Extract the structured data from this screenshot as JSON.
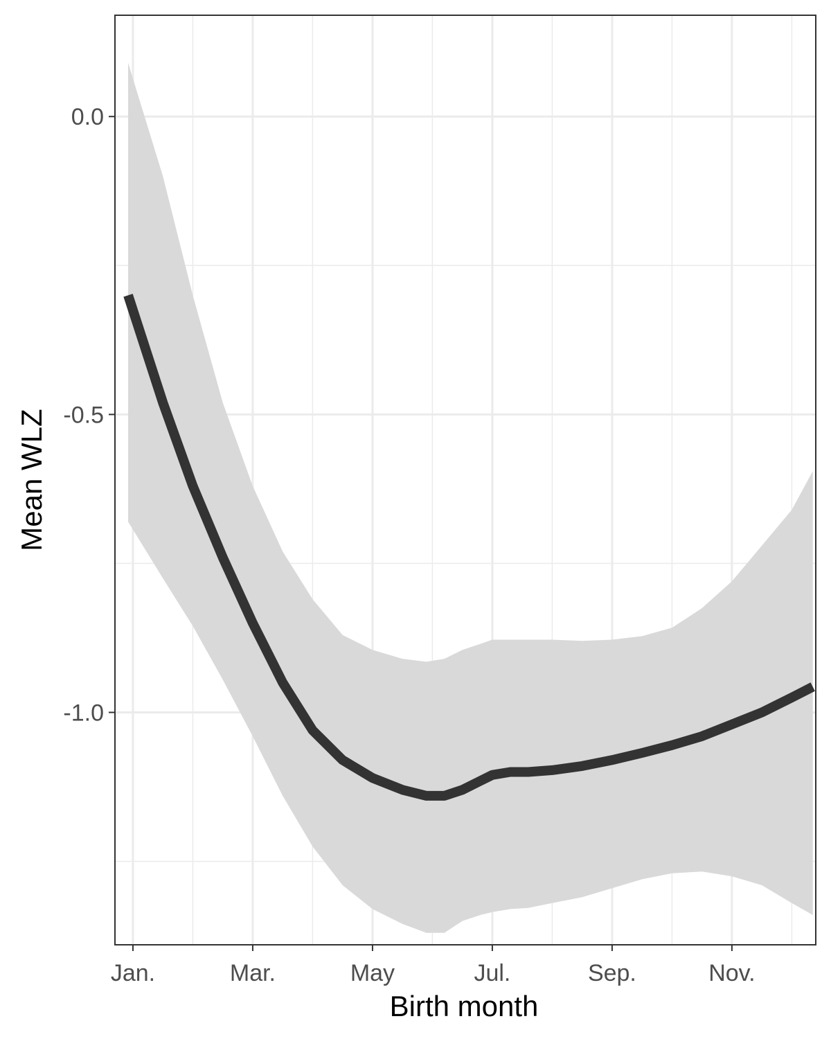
{
  "chart_data": {
    "type": "line",
    "xlabel": "Birth month",
    "ylabel": "Mean WLZ",
    "x_ticks": [
      {
        "value": 1,
        "label": "Jan."
      },
      {
        "value": 3,
        "label": "Mar."
      },
      {
        "value": 5,
        "label": "May"
      },
      {
        "value": 7,
        "label": "Jul."
      },
      {
        "value": 9,
        "label": "Sep."
      },
      {
        "value": 11,
        "label": "Nov."
      }
    ],
    "y_ticks": [
      {
        "value": 0.0,
        "label": "0.0"
      },
      {
        "value": -0.5,
        "label": "-0.5"
      },
      {
        "value": -1.0,
        "label": "-1.0"
      }
    ],
    "xlim": [
      0.7,
      12.4
    ],
    "ylim": [
      -1.39,
      0.17
    ],
    "grid": true,
    "colors": {
      "line": "#333333",
      "ribbon": "#d9d9d9",
      "grid": "#ebebeb",
      "panel_border": "#333333"
    },
    "series": [
      {
        "x": [
          0.92,
          1.5,
          2.0,
          2.5,
          3.0,
          3.5,
          4.0,
          4.5,
          5.0,
          5.5,
          5.9,
          6.2,
          6.5,
          6.8,
          7.0,
          7.3,
          7.6,
          8.0,
          8.5,
          9.0,
          9.5,
          10.0,
          10.5,
          11.0,
          11.5,
          12.0,
          12.35
        ],
        "y": [
          -0.3,
          -0.48,
          -0.62,
          -0.74,
          -0.85,
          -0.95,
          -1.03,
          -1.08,
          -1.11,
          -1.13,
          -1.14,
          -1.14,
          -1.13,
          -1.115,
          -1.105,
          -1.1,
          -1.1,
          -1.097,
          -1.09,
          -1.08,
          -1.068,
          -1.055,
          -1.04,
          -1.02,
          -1.0,
          -0.975,
          -0.957
        ],
        "lower": [
          -0.68,
          -0.775,
          -0.855,
          -0.945,
          -1.04,
          -1.14,
          -1.225,
          -1.29,
          -1.33,
          -1.355,
          -1.37,
          -1.37,
          -1.35,
          -1.34,
          -1.335,
          -1.33,
          -1.328,
          -1.32,
          -1.31,
          -1.295,
          -1.28,
          -1.27,
          -1.267,
          -1.275,
          -1.29,
          -1.32,
          -1.34
        ],
        "upper": [
          0.09,
          -0.1,
          -0.3,
          -0.48,
          -0.62,
          -0.73,
          -0.81,
          -0.87,
          -0.895,
          -0.91,
          -0.915,
          -0.91,
          -0.895,
          -0.885,
          -0.878,
          -0.878,
          -0.878,
          -0.878,
          -0.88,
          -0.878,
          -0.872,
          -0.858,
          -0.825,
          -0.78,
          -0.72,
          -0.66,
          -0.595
        ]
      }
    ]
  }
}
